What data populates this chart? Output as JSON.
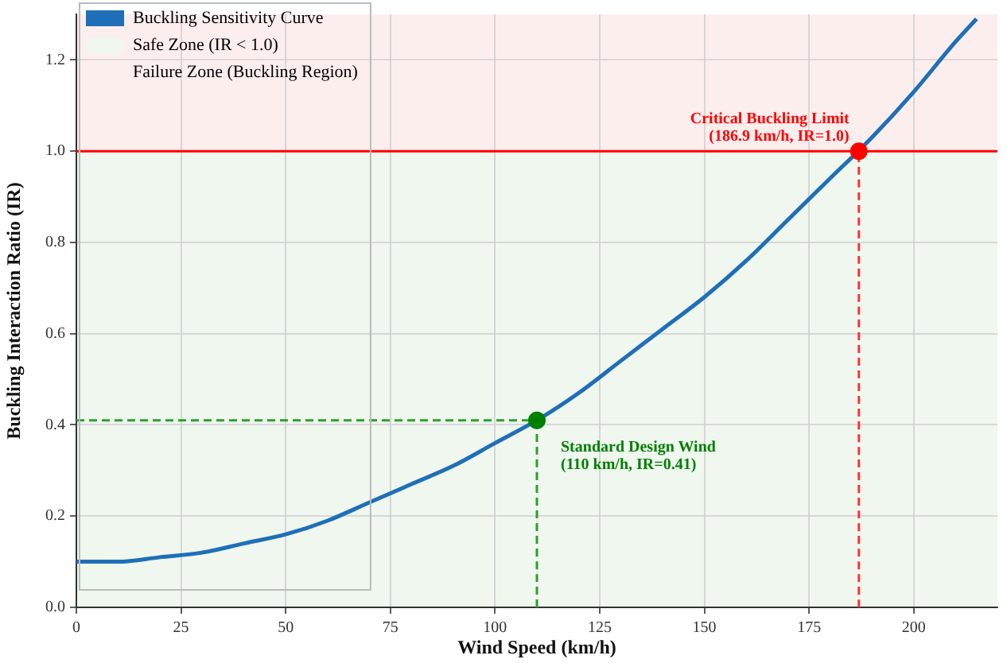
{
  "chart_data": {
    "type": "line",
    "xlabel": "Wind Speed (km/h)",
    "ylabel": "Buckling Interaction Ratio (IR)",
    "series": [
      {
        "name": "Buckling Sensitivity Curve",
        "color": "#1f6fb8",
        "x": [
          0,
          10,
          20,
          30,
          40,
          50,
          60,
          70,
          80,
          90,
          100,
          110,
          120,
          130,
          140,
          150,
          160,
          170,
          180,
          190,
          200,
          210,
          215
        ],
        "values": [
          0.1,
          0.1,
          0.11,
          0.12,
          0.14,
          0.16,
          0.19,
          0.23,
          0.27,
          0.31,
          0.36,
          0.41,
          0.47,
          0.54,
          0.61,
          0.68,
          0.76,
          0.85,
          0.94,
          1.03,
          1.13,
          1.24,
          1.29
        ]
      },
      {
        "type": "line",
        "color": "#2ca02c",
        "line_style": "dashed",
        "marker": "none",
        "x": [
          0,
          110
        ],
        "values": [
          0.41,
          0.41
        ]
      },
      {
        "type": "line",
        "color": "#2ca02c",
        "line_style": "dashed",
        "marker": "none",
        "x": [
          110,
          110
        ],
        "values": [
          0,
          0.41
        ]
      },
      {
        "type": "line",
        "color": "#ff3333",
        "line_style": "dashed",
        "marker": "none",
        "x": [
          186.9,
          186.9
        ],
        "values": [
          0,
          1.0
        ]
      },
      {
        "type": "scatter",
        "color": "#008000",
        "marker": "circle",
        "x": [
          110
        ],
        "values": [
          0.41
        ]
      },
      {
        "type": "scatter",
        "color": "#ff0000",
        "marker": "circle",
        "x": [
          186.9
        ],
        "values": [
          1.0
        ]
      }
    ],
    "xlim": [
      0,
      220
    ],
    "xticks": [
      0,
      25,
      50,
      75,
      100,
      125,
      150,
      175,
      200
    ],
    "ylim": [
      0,
      1.3
    ],
    "yticks": [
      {
        "value": 0,
        "label": "0.0"
      },
      0.2,
      0.4,
      0.6,
      0.8,
      {
        "value": 1,
        "label": "1.0"
      },
      1.2
    ],
    "bands": [
      {
        "axis": "y",
        "from": 0,
        "to": 1.0,
        "label": "Safe Zone (IR < 1.0)",
        "color": "#eff7ef"
      },
      {
        "axis": "y",
        "from": 1.0,
        "to": 1.3,
        "label": "Failure Zone (Buckling Region)",
        "color": "#fdeeee"
      }
    ],
    "ref_lines": [
      {
        "axis": "y",
        "value": 1.0,
        "color": "#ff0000",
        "line_style": "solid"
      }
    ],
    "annotations": [
      {
        "text": "Critical Buckling Limit\n(186.9 km/h, IR=1.0)",
        "x": 186.9,
        "y": 1.0
      },
      {
        "text": "Standard Design Wind\n(110 km/h, IR=0.41)",
        "x": 110,
        "y": 0.41
      }
    ],
    "grid": true,
    "legend": "top left",
    "line_style": "solid",
    "marker": "none"
  }
}
